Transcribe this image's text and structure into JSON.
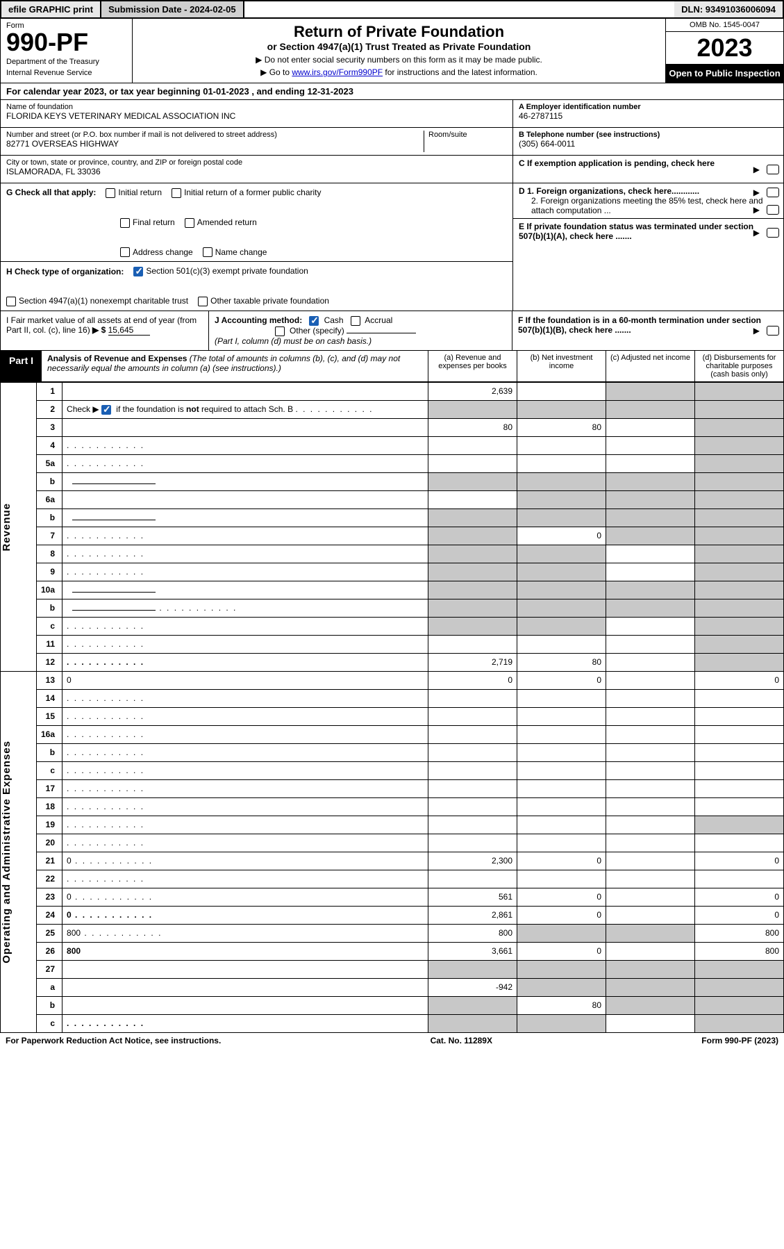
{
  "topbar": {
    "efile": "efile GRAPHIC print",
    "sub_label": "Submission Date - 2024-02-05",
    "dln": "DLN: 93491036006094"
  },
  "header": {
    "form_word": "Form",
    "form_num": "990-PF",
    "dept": "Department of the Treasury",
    "irs": "Internal Revenue Service",
    "title": "Return of Private Foundation",
    "subtitle": "or Section 4947(a)(1) Trust Treated as Private Foundation",
    "note1": "▶ Do not enter social security numbers on this form as it may be made public.",
    "note2_pre": "▶ Go to ",
    "note2_link": "www.irs.gov/Form990PF",
    "note2_post": " for instructions and the latest information.",
    "omb": "OMB No. 1545-0047",
    "year": "2023",
    "open": "Open to Public Inspection"
  },
  "cal": "For calendar year 2023, or tax year beginning 01-01-2023             , and ending 12-31-2023",
  "info": {
    "name_lbl": "Name of foundation",
    "name": "FLORIDA KEYS VETERINARY MEDICAL ASSOCIATION INC",
    "addr_lbl": "Number and street (or P.O. box number if mail is not delivered to street address)",
    "addr": "82771 OVERSEAS HIGHWAY",
    "room_lbl": "Room/suite",
    "city_lbl": "City or town, state or province, country, and ZIP or foreign postal code",
    "city": "ISLAMORADA, FL  33036",
    "ein_lbl": "A Employer identification number",
    "ein": "46-2787115",
    "phone_lbl": "B Telephone number (see instructions)",
    "phone": "(305) 664-0011",
    "c": "C If exemption application is pending, check here",
    "d1": "D 1. Foreign organizations, check here............",
    "d2": "2. Foreign organizations meeting the 85% test, check here and attach computation ...",
    "e": "E  If private foundation status was terminated under section 507(b)(1)(A), check here .......",
    "f": "F  If the foundation is in a 60-month termination under section 507(b)(1)(B), check here ......."
  },
  "g": {
    "label": "G Check all that apply:",
    "opts": [
      "Initial return",
      "Initial return of a former public charity",
      "Final return",
      "Amended return",
      "Address change",
      "Name change"
    ]
  },
  "h": {
    "label": "H Check type of organization:",
    "opt1": "Section 501(c)(3) exempt private foundation",
    "opt2": "Section 4947(a)(1) nonexempt charitable trust",
    "opt3": "Other taxable private foundation"
  },
  "i": {
    "label": "I Fair market value of all assets at end of year (from Part II, col. (c), line 16)",
    "val": "15,645"
  },
  "j": {
    "label": "J Accounting method:",
    "cash": "Cash",
    "accrual": "Accrual",
    "other": "Other (specify)",
    "note": "(Part I, column (d) must be on cash basis.)"
  },
  "part1": {
    "tag": "Part I",
    "title": "Analysis of Revenue and Expenses",
    "note": "(The total of amounts in columns (b), (c), and (d) may not necessarily equal the amounts in column (a) (see instructions).)",
    "cols": {
      "a": "(a)   Revenue and expenses per books",
      "b": "(b)    Net investment income",
      "c": "(c)   Adjusted net income",
      "d": "(d)   Disbursements for charitable purposes (cash basis only)"
    }
  },
  "sides": {
    "rev": "Revenue",
    "exp": "Operating and Administrative Expenses"
  },
  "rows": [
    {
      "n": "1",
      "d": "",
      "a": "2,639",
      "b": "",
      "c": "",
      "ga": false,
      "gc": true,
      "gd": true
    },
    {
      "n": "2",
      "d": "",
      "a": "",
      "b": "",
      "c": "",
      "ga": true,
      "gb": true,
      "gc": true,
      "gd": true,
      "chk": true,
      "dots": true
    },
    {
      "n": "3",
      "d": "",
      "a": "80",
      "b": "80",
      "c": "",
      "gd": true
    },
    {
      "n": "4",
      "d": "",
      "a": "",
      "b": "",
      "c": "",
      "gd": true,
      "dots": true
    },
    {
      "n": "5a",
      "d": "",
      "a": "",
      "b": "",
      "c": "",
      "gd": true,
      "dots": true
    },
    {
      "n": "b",
      "d": "",
      "a": "",
      "b": "",
      "c": "",
      "ga": true,
      "gb": true,
      "gc": true,
      "gd": true,
      "ul": true
    },
    {
      "n": "6a",
      "d": "",
      "a": "",
      "b": "",
      "c": "",
      "gb": true,
      "gc": true,
      "gd": true
    },
    {
      "n": "b",
      "d": "",
      "a": "",
      "b": "",
      "c": "",
      "ga": true,
      "gb": true,
      "gc": true,
      "gd": true,
      "ul": true
    },
    {
      "n": "7",
      "d": "",
      "a": "",
      "b": "0",
      "c": "",
      "ga": true,
      "gc": true,
      "gd": true,
      "dots": true
    },
    {
      "n": "8",
      "d": "",
      "a": "",
      "b": "",
      "c": "",
      "ga": true,
      "gb": true,
      "gd": true,
      "dots": true
    },
    {
      "n": "9",
      "d": "",
      "a": "",
      "b": "",
      "c": "",
      "ga": true,
      "gb": true,
      "gd": true,
      "dots": true
    },
    {
      "n": "10a",
      "d": "",
      "a": "",
      "b": "",
      "c": "",
      "ga": true,
      "gb": true,
      "gc": true,
      "gd": true,
      "ul": true
    },
    {
      "n": "b",
      "d": "",
      "a": "",
      "b": "",
      "c": "",
      "ga": true,
      "gb": true,
      "gc": true,
      "gd": true,
      "dots": true,
      "ul": true
    },
    {
      "n": "c",
      "d": "",
      "a": "",
      "b": "",
      "c": "",
      "ga": true,
      "gb": true,
      "gd": true,
      "dots": true
    },
    {
      "n": "11",
      "d": "",
      "a": "",
      "b": "",
      "c": "",
      "gd": true,
      "dots": true
    },
    {
      "n": "12",
      "d": "",
      "a": "2,719",
      "b": "80",
      "c": "",
      "gd": true,
      "bold": true,
      "dots": true
    },
    {
      "n": "13",
      "d": "0",
      "a": "0",
      "b": "0",
      "c": ""
    },
    {
      "n": "14",
      "d": "",
      "a": "",
      "b": "",
      "c": "",
      "dots": true
    },
    {
      "n": "15",
      "d": "",
      "a": "",
      "b": "",
      "c": "",
      "dots": true
    },
    {
      "n": "16a",
      "d": "",
      "a": "",
      "b": "",
      "c": "",
      "dots": true
    },
    {
      "n": "b",
      "d": "",
      "a": "",
      "b": "",
      "c": "",
      "dots": true
    },
    {
      "n": "c",
      "d": "",
      "a": "",
      "b": "",
      "c": "",
      "dots": true
    },
    {
      "n": "17",
      "d": "",
      "a": "",
      "b": "",
      "c": "",
      "dots": true
    },
    {
      "n": "18",
      "d": "",
      "a": "",
      "b": "",
      "c": "",
      "dots": true
    },
    {
      "n": "19",
      "d": "",
      "a": "",
      "b": "",
      "c": "",
      "gd": true,
      "dots": true
    },
    {
      "n": "20",
      "d": "",
      "a": "",
      "b": "",
      "c": "",
      "dots": true
    },
    {
      "n": "21",
      "d": "0",
      "a": "2,300",
      "b": "0",
      "c": "",
      "dots": true
    },
    {
      "n": "22",
      "d": "",
      "a": "",
      "b": "",
      "c": "",
      "dots": true
    },
    {
      "n": "23",
      "d": "0",
      "a": "561",
      "b": "0",
      "c": "",
      "dots": true
    },
    {
      "n": "24",
      "d": "0",
      "a": "2,861",
      "b": "0",
      "c": "",
      "bold": true,
      "dots": true
    },
    {
      "n": "25",
      "d": "800",
      "a": "800",
      "b": "",
      "c": "",
      "gb": true,
      "gc": true,
      "dots": true
    },
    {
      "n": "26",
      "d": "800",
      "a": "3,661",
      "b": "0",
      "c": "",
      "bold": true
    },
    {
      "n": "27",
      "d": "",
      "a": "",
      "b": "",
      "c": "",
      "ga": true,
      "gb": true,
      "gc": true,
      "gd": true
    },
    {
      "n": "a",
      "d": "",
      "a": "-942",
      "b": "",
      "c": "",
      "gb": true,
      "gc": true,
      "gd": true,
      "bold": true
    },
    {
      "n": "b",
      "d": "",
      "a": "",
      "b": "80",
      "c": "",
      "ga": true,
      "gc": true,
      "gd": true,
      "bold": true
    },
    {
      "n": "c",
      "d": "",
      "a": "",
      "b": "",
      "c": "",
      "ga": true,
      "gb": true,
      "gd": true,
      "bold": true,
      "dots": true
    }
  ],
  "footer": {
    "left": "For Paperwork Reduction Act Notice, see instructions.",
    "mid": "Cat. No. 11289X",
    "right": "Form 990-PF (2023)"
  },
  "colors": {
    "black": "#000000",
    "grey": "#c8c8c8",
    "link": "#0000cc",
    "check": "#1a5fb4"
  }
}
